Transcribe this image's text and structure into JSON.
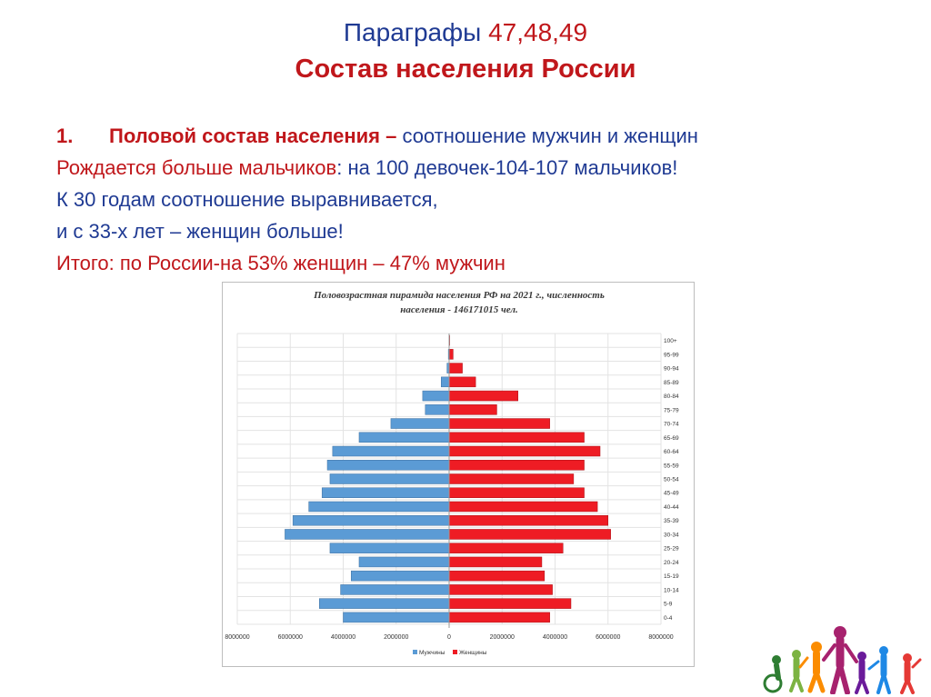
{
  "slide": {
    "title_prefix": "Параграфы",
    "title_numbers": "47,48,49",
    "subtitle": "Состав населения России",
    "point_number": "1.",
    "point_heading": "Половой состав населения –",
    "point_rest": " соотношение мужчин и женщин",
    "line2_red": "Рождается больше мальчиков",
    "line2_rest": ": на 100 девочек-104-107 мальчиков!",
    "line3": "К 30 годам соотношение выравнивается,",
    "line4": "и с 33-х лет – женщин больше!",
    "line5": "Итого: по России-на 53% женщин – 47% мужчин"
  },
  "colors": {
    "blue_text": "#1f3a93",
    "red_text": "#c0171b",
    "male": "#5b9bd5",
    "female": "#ee1c24"
  },
  "decorations": {
    "bottom_right": "people-silhouettes-icon"
  },
  "chart_data": {
    "type": "bar",
    "orientation": "horizontal-population-pyramid",
    "title_line1": "Половозрастная пирамида населения РФ на 2021 г., численность",
    "title_line2": "населения - 146171015 чел.",
    "categories": [
      "0-4",
      "5-9",
      "10-14",
      "15-19",
      "20-24",
      "25-29",
      "30-34",
      "35-39",
      "40-44",
      "45-49",
      "50-54",
      "55-59",
      "60-64",
      "65-69",
      "70-74",
      "75-79",
      "80-84",
      "85-89",
      "90-94",
      "95-99",
      "100+"
    ],
    "series": [
      {
        "name": "Мужчины",
        "values": [
          4000000,
          4900000,
          4100000,
          3700000,
          3400000,
          4500000,
          6200000,
          5900000,
          5300000,
          4800000,
          4500000,
          4600000,
          4400000,
          3400000,
          2200000,
          900000,
          1000000,
          300000,
          80000,
          30000,
          5000
        ]
      },
      {
        "name": "Женщины",
        "values": [
          3800000,
          4600000,
          3900000,
          3600000,
          3500000,
          4300000,
          6100000,
          6000000,
          5600000,
          5100000,
          4700000,
          5100000,
          5700000,
          5100000,
          3800000,
          1800000,
          2600000,
          1000000,
          500000,
          150000,
          20000
        ]
      }
    ],
    "x_ticks": [
      "8000000",
      "6000000",
      "4000000",
      "2000000",
      "0",
      "2000000",
      "4000000",
      "6000000",
      "8000000"
    ],
    "xlim": [
      -8000000,
      8000000
    ],
    "legend_position": "bottom-center",
    "grid": true
  }
}
